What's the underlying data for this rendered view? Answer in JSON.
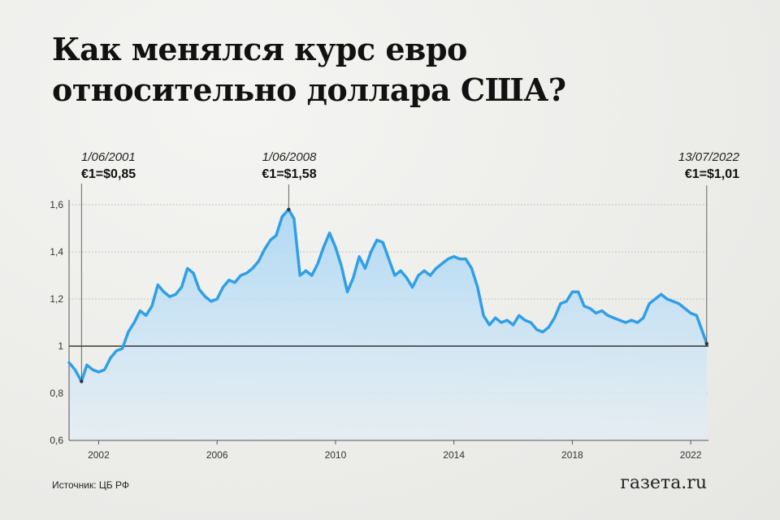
{
  "title": "Как менялся курс евро относительно доллара США?",
  "source": "Источник: ЦБ РФ",
  "logo": "газета.ru",
  "colors": {
    "line": "#2f9fe6",
    "fill_top": "#a9d6f5",
    "fill_bottom": "#e3eef6",
    "baseline": "#111111",
    "grid": "#b8b8b8"
  },
  "chart_data": {
    "type": "area",
    "title": "Как менялся курс евро относительно доллара США?",
    "xlabel": "",
    "ylabel": "",
    "xlim": [
      2001.0,
      2022.6
    ],
    "ylim": [
      0.6,
      1.6
    ],
    "yticks": [
      0.6,
      0.8,
      1,
      1.2,
      1.4,
      1.6
    ],
    "ytick_labels": [
      "0,6",
      "0,8",
      "1",
      "1,2",
      "1,4",
      "1,6"
    ],
    "xticks": [
      2002,
      2006,
      2010,
      2014,
      2018,
      2022
    ],
    "xtick_labels": [
      "2002",
      "2006",
      "2010",
      "2014",
      "2018",
      "2022"
    ],
    "baseline": 1,
    "grid": "horizontal dotted",
    "series": [
      {
        "x": [
          2001.0,
          2001.2,
          2001.42,
          2001.6,
          2001.8,
          2002.0,
          2002.2,
          2002.4,
          2002.6,
          2002.8,
          2003.0,
          2003.2,
          2003.4,
          2003.6,
          2003.8,
          2004.0,
          2004.2,
          2004.4,
          2004.6,
          2004.8,
          2005.0,
          2005.2,
          2005.4,
          2005.6,
          2005.8,
          2006.0,
          2006.2,
          2006.4,
          2006.6,
          2006.8,
          2007.0,
          2007.2,
          2007.4,
          2007.6,
          2007.8,
          2008.0,
          2008.2,
          2008.42,
          2008.6,
          2008.8,
          2009.0,
          2009.2,
          2009.4,
          2009.6,
          2009.8,
          2010.0,
          2010.2,
          2010.4,
          2010.6,
          2010.8,
          2011.0,
          2011.2,
          2011.4,
          2011.6,
          2011.8,
          2012.0,
          2012.2,
          2012.4,
          2012.6,
          2012.8,
          2013.0,
          2013.2,
          2013.4,
          2013.6,
          2013.8,
          2014.0,
          2014.2,
          2014.4,
          2014.6,
          2014.8,
          2015.0,
          2015.2,
          2015.4,
          2015.6,
          2015.8,
          2016.0,
          2016.2,
          2016.4,
          2016.6,
          2016.8,
          2017.0,
          2017.2,
          2017.4,
          2017.6,
          2017.8,
          2018.0,
          2018.2,
          2018.4,
          2018.6,
          2018.8,
          2019.0,
          2019.2,
          2019.4,
          2019.6,
          2019.8,
          2020.0,
          2020.2,
          2020.4,
          2020.6,
          2020.8,
          2021.0,
          2021.2,
          2021.4,
          2021.6,
          2021.8,
          2022.0,
          2022.2,
          2022.4,
          2022.54
        ],
        "y": [
          0.93,
          0.9,
          0.85,
          0.92,
          0.9,
          0.89,
          0.9,
          0.95,
          0.98,
          0.99,
          1.06,
          1.1,
          1.15,
          1.13,
          1.17,
          1.26,
          1.23,
          1.21,
          1.22,
          1.25,
          1.33,
          1.31,
          1.24,
          1.21,
          1.19,
          1.2,
          1.25,
          1.28,
          1.27,
          1.3,
          1.31,
          1.33,
          1.36,
          1.41,
          1.45,
          1.47,
          1.55,
          1.58,
          1.54,
          1.3,
          1.32,
          1.3,
          1.35,
          1.42,
          1.48,
          1.42,
          1.34,
          1.23,
          1.29,
          1.38,
          1.33,
          1.4,
          1.45,
          1.44,
          1.37,
          1.3,
          1.32,
          1.29,
          1.25,
          1.3,
          1.32,
          1.3,
          1.33,
          1.35,
          1.37,
          1.38,
          1.37,
          1.37,
          1.33,
          1.25,
          1.13,
          1.09,
          1.12,
          1.1,
          1.11,
          1.09,
          1.13,
          1.11,
          1.1,
          1.07,
          1.06,
          1.08,
          1.12,
          1.18,
          1.19,
          1.23,
          1.23,
          1.17,
          1.16,
          1.14,
          1.15,
          1.13,
          1.12,
          1.11,
          1.1,
          1.11,
          1.1,
          1.12,
          1.18,
          1.2,
          1.22,
          1.2,
          1.19,
          1.18,
          1.16,
          1.14,
          1.13,
          1.06,
          1.01
        ]
      }
    ],
    "annotations": [
      {
        "date": "1/06/2001",
        "value": "€1=$0,85",
        "x": 2001.42,
        "y": 0.85
      },
      {
        "date": "1/06/2008",
        "value": "€1=$1,58",
        "x": 2008.42,
        "y": 1.58
      },
      {
        "date": "13/07/2022",
        "value": "€1=$1,01",
        "x": 2022.54,
        "y": 1.01
      }
    ]
  }
}
